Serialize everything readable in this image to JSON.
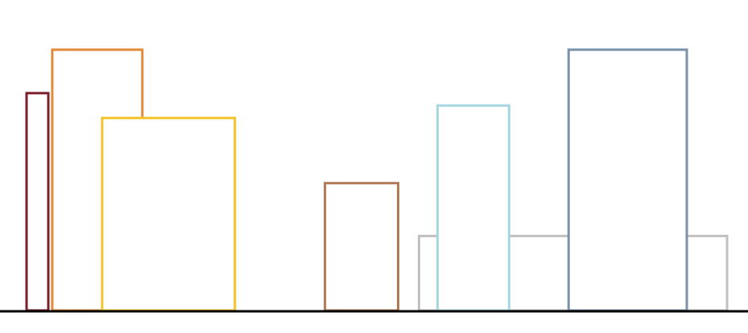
{
  "chart_data": {
    "type": "bar",
    "title": "",
    "xlabel": "",
    "ylabel": "",
    "ylim": [
      0,
      10
    ],
    "fill": "#ffffff",
    "baseline_color": "#000000",
    "bars": [
      {
        "name": "bar-crimson",
        "color": "#7a1f2b",
        "x0": 0.3,
        "x1": 3.0,
        "value": 7.0
      },
      {
        "name": "bar-orange",
        "color": "#e08a3a",
        "x0": 3.5,
        "x1": 14.7,
        "value": 8.4
      },
      {
        "name": "bar-yellow",
        "color": "#f5c32c",
        "x0": 9.7,
        "x1": 26.2,
        "value": 6.2
      },
      {
        "name": "bar-brown",
        "color": "#b07a58",
        "x0": 37.4,
        "x1": 46.5,
        "value": 4.1
      },
      {
        "name": "bar-silver",
        "color": "#c0c0c0",
        "x0": 49.1,
        "x1": 87.4,
        "value": 2.4
      },
      {
        "name": "bar-lightblue",
        "color": "#a6d6e0",
        "x0": 51.4,
        "x1": 60.3,
        "value": 6.6
      },
      {
        "name": "bar-steelblue",
        "color": "#7a93ab",
        "x0": 67.7,
        "x1": 82.4,
        "value": 8.4
      }
    ],
    "xlim": [
      -3,
      90
    ]
  }
}
